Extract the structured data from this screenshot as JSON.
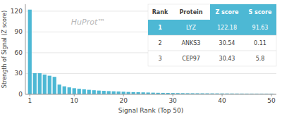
{
  "chart_data": {
    "type": "bar",
    "xlabel": "Signal Rank (Top 50)",
    "ylabel": "Strength of Signal (Z score)",
    "annotations": [
      "HuProt™"
    ],
    "x": [
      1,
      2,
      3,
      4,
      5,
      6,
      7,
      8,
      9,
      10,
      11,
      12,
      13,
      14,
      15,
      16,
      17,
      18,
      19,
      20,
      21,
      22,
      23,
      24,
      25,
      26,
      27,
      28,
      29,
      30,
      31,
      32,
      33,
      34,
      35,
      36,
      37,
      38,
      39,
      40,
      41,
      42,
      43,
      44,
      45,
      46,
      47,
      48,
      49,
      50
    ],
    "values": [
      122.18,
      30.54,
      30.43,
      28.5,
      26.8,
      25.2,
      14.0,
      11.5,
      10.0,
      8.8,
      8.0,
      7.2,
      6.5,
      5.9,
      5.4,
      5.0,
      4.6,
      4.3,
      4.0,
      3.7,
      3.4,
      3.2,
      3.0,
      2.8,
      2.6,
      2.4,
      2.2,
      2.1,
      2.0,
      1.9,
      1.8,
      1.7,
      1.6,
      1.55,
      1.5,
      1.45,
      1.4,
      1.35,
      1.3,
      1.25,
      1.2,
      1.15,
      1.1,
      1.05,
      1.0,
      0.95,
      0.9,
      0.85,
      0.8,
      0.75
    ],
    "color": "#4db8d4",
    "xlim": [
      0.1,
      51
    ],
    "xticks": [
      1,
      10,
      20,
      30,
      40,
      50
    ],
    "ylim": [
      0,
      130
    ],
    "yticks": [
      0,
      30,
      60,
      90,
      120
    ],
    "grid": true,
    "table": {
      "headers": [
        "Rank",
        "Protein",
        "Z score",
        "S score"
      ],
      "rows": [
        [
          "1",
          "LYZ",
          "122.18",
          "91.63"
        ],
        [
          "2",
          "ANKS3",
          "30.54",
          "0.11"
        ],
        [
          "3",
          "CEP97",
          "30.43",
          "5.8"
        ]
      ],
      "color": "#4db8d4"
    }
  }
}
